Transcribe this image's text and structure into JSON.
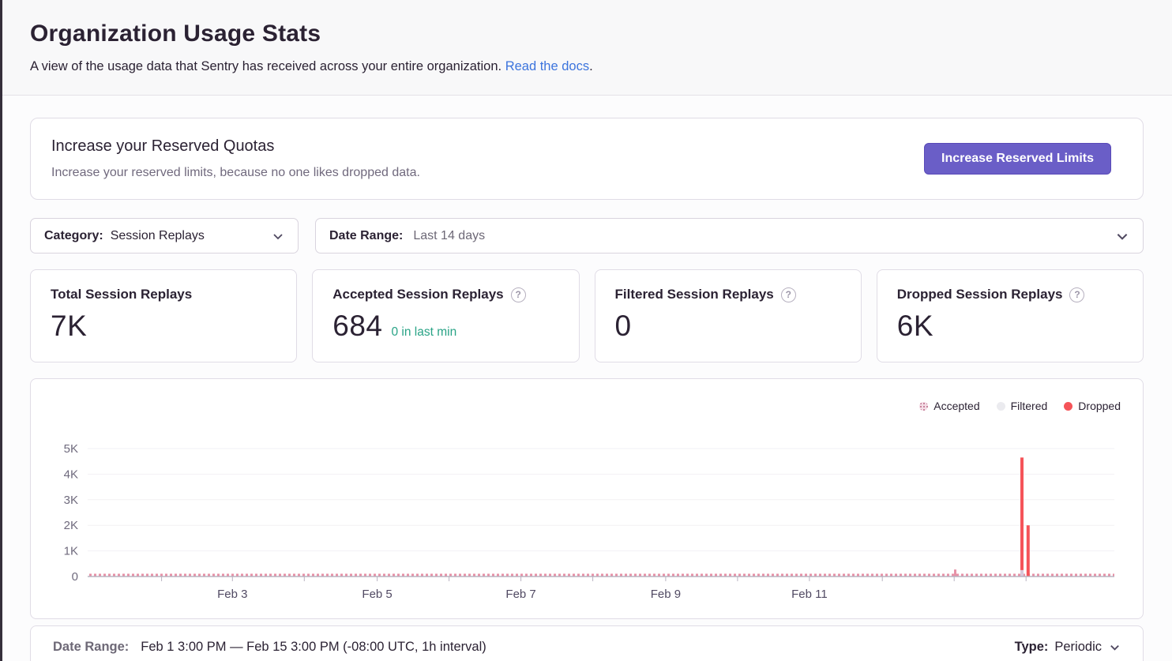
{
  "page": {
    "title": "Organization Usage Stats",
    "subtitle": "A view of the usage data that Sentry has received across your entire organization.",
    "subtitle_link": "Read the docs",
    "subtitle_suffix": "."
  },
  "quota_banner": {
    "title": "Increase your Reserved Quotas",
    "description": "Increase your reserved limits, because no one likes dropped data.",
    "button_label": "Increase Reserved Limits"
  },
  "filters": {
    "category": {
      "label": "Category:",
      "value": "Session Replays"
    },
    "date_range": {
      "label": "Date Range:",
      "value": "Last 14 days"
    }
  },
  "scorecards": [
    {
      "title": "Total Session Replays",
      "value": "7K"
    },
    {
      "title": "Accepted Session Replays",
      "value": "684",
      "trend": "0 in last min"
    },
    {
      "title": "Filtered Session Replays",
      "value": "0"
    },
    {
      "title": "Dropped Session Replays",
      "value": "6K"
    }
  ],
  "chart_data": {
    "type": "bar",
    "stacked": true,
    "interval": "1h",
    "title": "",
    "xlabel": "",
    "ylabel": "",
    "x_range": [
      "Feb 1 3:00 PM",
      "Feb 15 3:00 PM"
    ],
    "ymax": 5000,
    "yticks": [
      0,
      1000,
      2000,
      3000,
      4000,
      5000
    ],
    "ytick_labels": [
      "0",
      "1K",
      "2K",
      "3K",
      "4K",
      "5K"
    ],
    "grid": true,
    "legend_position": "top-right",
    "legend": [
      {
        "name": "Accepted",
        "color": "#e792a7",
        "pattern": "dotted"
      },
      {
        "name": "Filtered",
        "color": "#ebebef",
        "pattern": "solid"
      },
      {
        "name": "Dropped",
        "color": "#f55459",
        "pattern": "solid"
      }
    ],
    "xticks": [
      {
        "label": "",
        "date": "Feb 2",
        "pos": 0.072
      },
      {
        "label": "Feb 3",
        "date": "Feb 3",
        "pos": 0.141
      },
      {
        "label": "",
        "date": "Feb 4",
        "pos": 0.211
      },
      {
        "label": "Feb 5",
        "date": "Feb 5",
        "pos": 0.282
      },
      {
        "label": "",
        "date": "Feb 6",
        "pos": 0.352
      },
      {
        "label": "Feb 7",
        "date": "Feb 7",
        "pos": 0.422
      },
      {
        "label": "",
        "date": "Feb 8",
        "pos": 0.492
      },
      {
        "label": "Feb 9",
        "date": "Feb 9",
        "pos": 0.563
      },
      {
        "label": "",
        "date": "Feb 10",
        "pos": 0.633
      },
      {
        "label": "Feb 11",
        "date": "Feb 11",
        "pos": 0.703
      },
      {
        "label": "",
        "date": "Feb 12",
        "pos": 0.774
      },
      {
        "label": "",
        "date": "Feb 13",
        "pos": 0.844
      },
      {
        "label": "",
        "date": "Feb 14",
        "pos": 0.914
      }
    ],
    "accepted_baseline": {
      "description": "tiny hourly accepted counts rendered as a dotted pink strip along the zero axis",
      "approx_value_per_hour": 2
    },
    "accepted_bump": {
      "date": "Feb 13",
      "pos": 0.845,
      "value": 150
    },
    "dropped_bars": [
      {
        "date": "Feb 14",
        "pos": 0.91,
        "dropped": 4400,
        "accepted": 250
      },
      {
        "date": "Feb 14",
        "pos": 0.916,
        "dropped": 2000,
        "accepted": 0
      }
    ],
    "axis_line_color": "#b9b3c1",
    "grid_line_color": "#f2f1f4",
    "y_label_color": "#6f6a7d",
    "x_label_color": "#514a63",
    "accepted_stack_color": "#d9c8da"
  },
  "footer": {
    "date_range_label": "Date Range:",
    "date_range_value": "Feb 1 3:00 PM — Feb 15 3:00 PM (-08:00 UTC, 1h interval)",
    "type_label": "Type:",
    "type_value": "Periodic"
  },
  "colors": {
    "accent_purple": "#6a5ec7",
    "link_blue": "#3c74dd",
    "trend_green": "#29a386",
    "dropped_red": "#f55459",
    "accepted_pink": "#e792a7",
    "text_dark": "#2b2233",
    "text_gray": "#70697d"
  },
  "icons": {
    "help": "?",
    "chevron_down": "v"
  }
}
